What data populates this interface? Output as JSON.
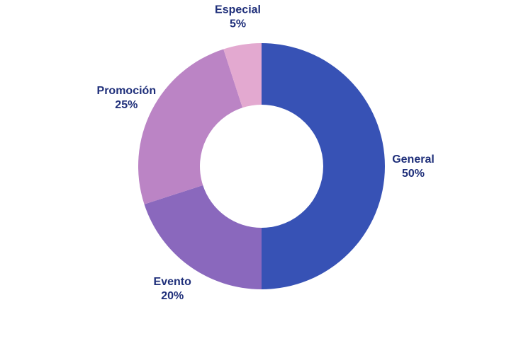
{
  "chart_data": {
    "type": "pie",
    "donut": true,
    "legend": "none",
    "title": "",
    "categories": [
      "General",
      "Evento",
      "Promoción",
      "Especial"
    ],
    "values": [
      50,
      20,
      25,
      5
    ],
    "value_labels": [
      "50%",
      "20%",
      "25%",
      "5%"
    ],
    "colors": [
      "#3752b5",
      "#8a68bd",
      "#bb84c5",
      "#e3a9d0"
    ],
    "label_color": "#1f2f7a"
  }
}
